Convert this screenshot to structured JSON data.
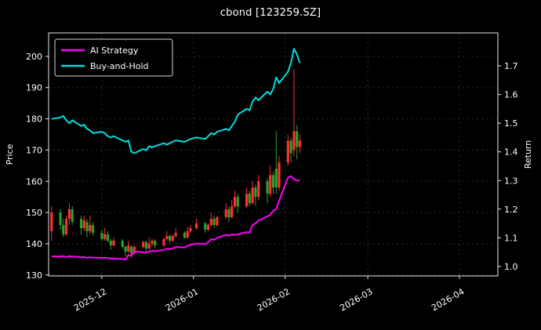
{
  "title": "cbond [123259.SZ]",
  "colors": {
    "background": "#000000",
    "foreground": "#ffffff",
    "spine": "#e8e8e8",
    "grid": "#2e2e2e",
    "ai_line": "#ff00ff",
    "bh_line": "#00dddd",
    "candle_up": "#ff3030",
    "candle_down": "#2ca02c"
  },
  "chart_data": {
    "type": "candlestick+line",
    "title": "cbond [123259.SZ]",
    "ylabel_left": "Price",
    "ylabel_right": "Return",
    "legend_position": "upper-left",
    "price_axis": {
      "min": 129.7,
      "max": 207.5,
      "ticks": [
        130,
        140,
        150,
        160,
        170,
        180,
        190,
        200
      ]
    },
    "return_axis": {
      "min": 0.967,
      "max": 1.815,
      "ticks": [
        1.0,
        1.1,
        1.2,
        1.3,
        1.4,
        1.5,
        1.6,
        1.7
      ]
    },
    "x_axis": {
      "start": "2025-11-13",
      "end": "2026-04-14",
      "tick_dates": [
        "2025-12-01",
        "2026-01-01",
        "2026-02-01",
        "2026-03-01",
        "2026-04-01"
      ],
      "tick_labels": [
        "2025-12",
        "2026-01",
        "2026-02",
        "2026-03",
        "2026-04"
      ]
    },
    "dates": [
      "2025-11-14",
      "2025-11-17",
      "2025-11-18",
      "2025-11-19",
      "2025-11-20",
      "2025-11-21",
      "2025-11-24",
      "2025-11-25",
      "2025-11-26",
      "2025-11-27",
      "2025-11-28",
      "2025-12-01",
      "2025-12-02",
      "2025-12-03",
      "2025-12-04",
      "2025-12-05",
      "2025-12-08",
      "2025-12-09",
      "2025-12-10",
      "2025-12-11",
      "2025-12-12",
      "2025-12-15",
      "2025-12-16",
      "2025-12-17",
      "2025-12-18",
      "2025-12-19",
      "2025-12-22",
      "2025-12-23",
      "2025-12-24",
      "2025-12-25",
      "2025-12-26",
      "2025-12-29",
      "2025-12-30",
      "2025-12-31",
      "2026-01-02",
      "2026-01-05",
      "2026-01-06",
      "2026-01-07",
      "2026-01-08",
      "2026-01-09",
      "2026-01-12",
      "2026-01-13",
      "2026-01-14",
      "2026-01-15",
      "2026-01-16",
      "2026-01-19",
      "2026-01-20",
      "2026-01-21",
      "2026-01-22",
      "2026-01-23",
      "2026-01-26",
      "2026-01-27",
      "2026-01-28",
      "2026-01-29",
      "2026-01-30",
      "2026-02-02",
      "2026-02-03",
      "2026-02-04",
      "2026-02-05",
      "2026-02-06"
    ],
    "ohlc": {
      "open": [
        144,
        150,
        146,
        143,
        148,
        151,
        148,
        145,
        147,
        144,
        146,
        143.5,
        141.5,
        143,
        141,
        139.5,
        141,
        139,
        137.5,
        139,
        137,
        139,
        140.5,
        138.5,
        140,
        141,
        139.5,
        141.5,
        142.5,
        141,
        142.5,
        143.5,
        142,
        144,
        145,
        146.5,
        144.5,
        146,
        148,
        146,
        148.5,
        151,
        148.5,
        152,
        155,
        152,
        156,
        153,
        158,
        155,
        160,
        156,
        162,
        164,
        158,
        166,
        173,
        170,
        176,
        171
      ],
      "high": [
        152,
        151,
        148,
        149,
        153,
        152,
        149,
        149,
        148,
        149,
        147,
        144.5,
        145,
        144,
        141.5,
        142,
        141.5,
        139.5,
        141,
        139.5,
        139.5,
        141,
        141,
        142,
        141.5,
        141.5,
        142,
        144,
        143,
        143,
        145,
        144,
        145.5,
        146,
        148,
        147,
        146.5,
        150,
        149,
        149,
        153,
        152,
        154,
        157,
        156,
        158,
        157,
        160,
        159,
        162,
        161,
        165,
        163,
        176,
        168,
        175,
        174,
        196,
        178,
        175
      ],
      "low": [
        141,
        144.5,
        142,
        142.5,
        146,
        146,
        143,
        144,
        142,
        143,
        142.5,
        141,
        141,
        140.5,
        138,
        139,
        138.5,
        136,
        137,
        135.5,
        136.5,
        138.5,
        137.5,
        138,
        139,
        138.5,
        139,
        141,
        140,
        140.5,
        142,
        141.5,
        141.5,
        143.5,
        144.5,
        143.5,
        144,
        145.5,
        145,
        145.5,
        148,
        147,
        148,
        151.5,
        150,
        151.5,
        152,
        152.5,
        152,
        154,
        153,
        155,
        156,
        156,
        157,
        165,
        166,
        168,
        167,
        169
      ],
      "close": [
        150,
        146,
        143,
        148,
        151,
        147,
        145,
        147.5,
        144,
        146,
        143.5,
        141.5,
        143,
        141,
        139.5,
        141,
        139,
        137.5,
        139.5,
        137,
        139,
        140.5,
        138.5,
        140,
        141,
        139.5,
        141.5,
        142.5,
        141,
        142.5,
        143.5,
        142,
        144,
        145,
        146.5,
        144.5,
        146,
        148,
        146,
        148.5,
        151,
        148.5,
        152,
        155,
        152,
        156,
        153,
        158,
        155,
        160,
        156,
        162,
        158,
        158,
        166,
        173,
        169,
        176,
        171,
        173
      ]
    },
    "series": [
      {
        "name": "AI Strategy",
        "axis": "return",
        "color": "#ff00ff",
        "values": [
          1.035,
          1.035,
          1.036,
          1.033,
          1.036,
          1.035,
          1.032,
          1.033,
          1.03,
          1.032,
          1.031,
          1.03,
          1.031,
          1.029,
          1.027,
          1.028,
          1.026,
          1.024,
          1.04,
          1.038,
          1.052,
          1.05,
          1.048,
          1.052,
          1.055,
          1.053,
          1.058,
          1.062,
          1.06,
          1.063,
          1.068,
          1.066,
          1.072,
          1.075,
          1.08,
          1.078,
          1.085,
          1.095,
          1.093,
          1.1,
          1.11,
          1.108,
          1.112,
          1.11,
          1.112,
          1.12,
          1.118,
          1.145,
          1.15,
          1.16,
          1.175,
          1.18,
          1.195,
          1.2,
          1.23,
          1.31,
          1.315,
          1.305,
          1.3,
          1.3
        ]
      },
      {
        "name": "Buy-and-Hold",
        "axis": "return",
        "color": "#00dddd",
        "values": [
          1.515,
          1.52,
          1.525,
          1.51,
          1.5,
          1.51,
          1.49,
          1.495,
          1.48,
          1.475,
          1.465,
          1.47,
          1.465,
          1.455,
          1.45,
          1.455,
          1.44,
          1.435,
          1.44,
          1.4,
          1.395,
          1.41,
          1.405,
          1.42,
          1.415,
          1.42,
          1.43,
          1.425,
          1.43,
          1.435,
          1.44,
          1.435,
          1.44,
          1.445,
          1.45,
          1.445,
          1.455,
          1.465,
          1.46,
          1.47,
          1.48,
          1.475,
          1.49,
          1.505,
          1.53,
          1.55,
          1.545,
          1.575,
          1.59,
          1.58,
          1.61,
          1.6,
          1.62,
          1.66,
          1.64,
          1.68,
          1.71,
          1.76,
          1.74,
          1.71
        ]
      }
    ]
  }
}
